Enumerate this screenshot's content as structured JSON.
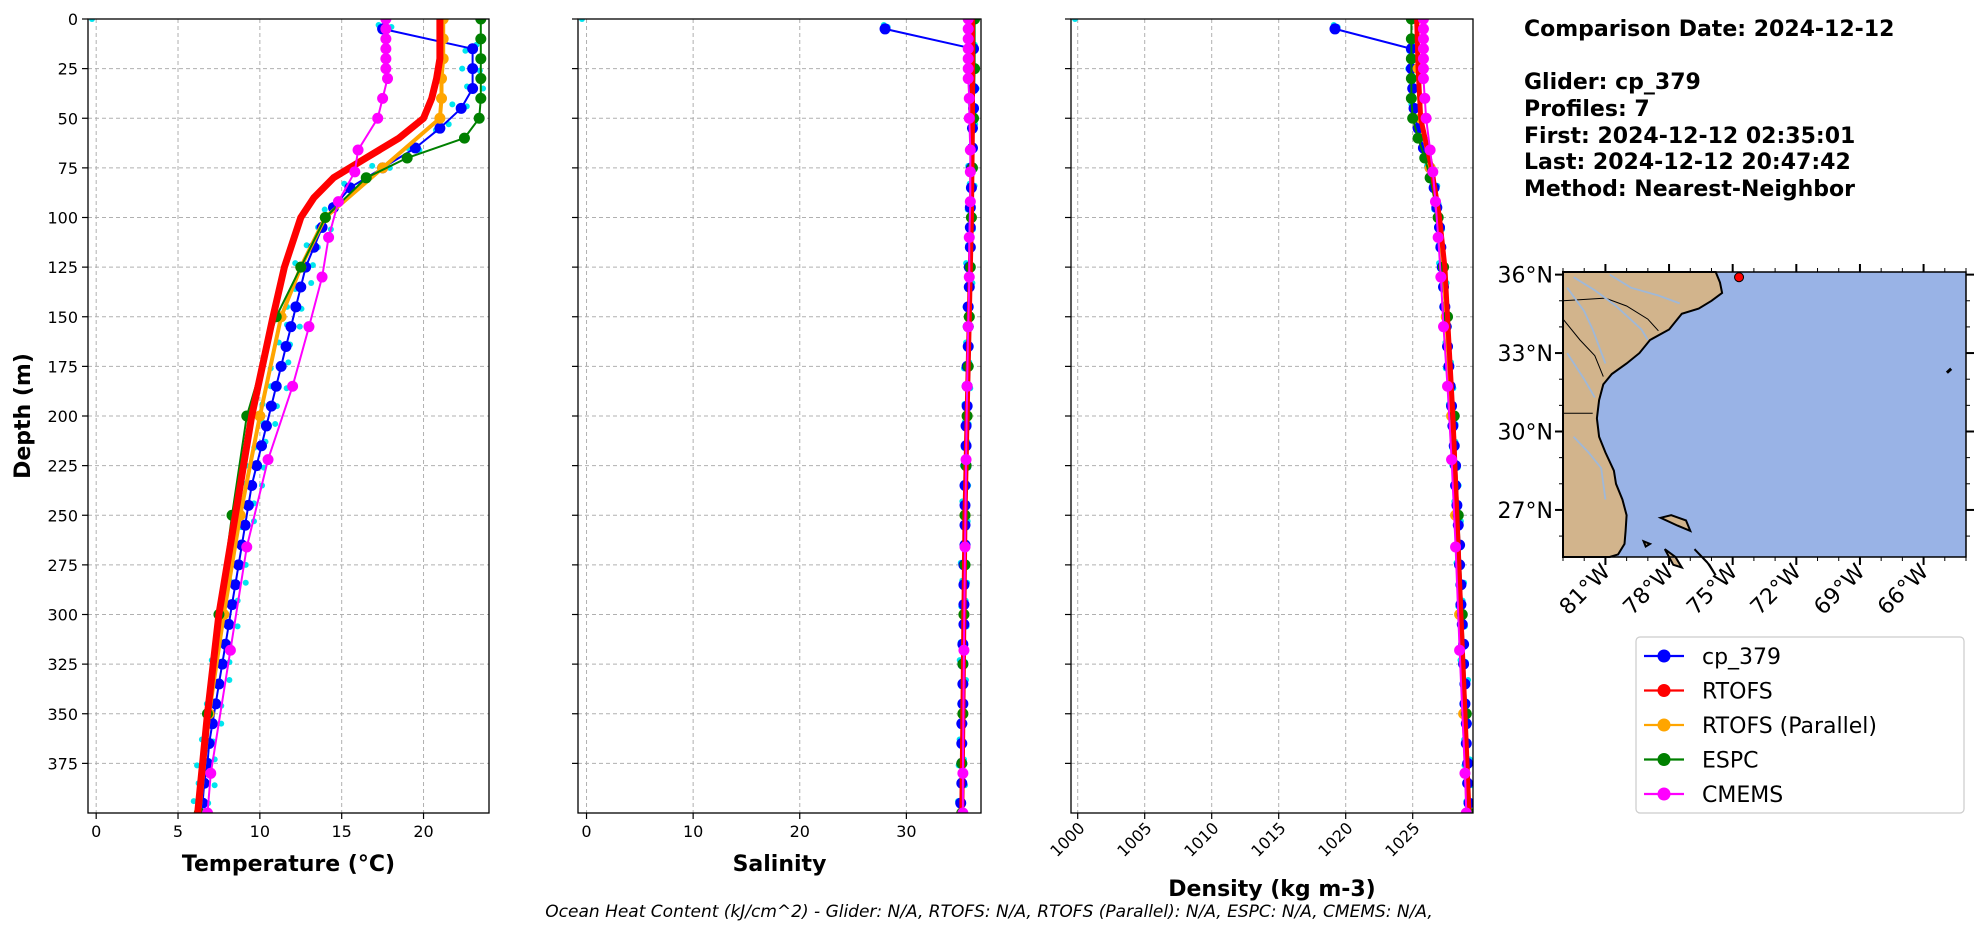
{
  "colors": {
    "cp_379": "#0000ff",
    "RTOFS": "#ff0000",
    "RTOFS (Parallel)": "#ffa500",
    "ESPC": "#008000",
    "CMEMS": "#ff00ff",
    "glider_raw": "#00e5ee",
    "grid": "#b0b0b0",
    "land": "#d2b48c",
    "ocean": "#99b3e6",
    "river": "#9fb8d8"
  },
  "info": {
    "lines": [
      "Comparison Date: 2024-12-12",
      "",
      "Glider: cp_379",
      "Profiles: 7",
      "First: 2024-12-12 02:35:01",
      "Last: 2024-12-12 20:47:42",
      "Method: Nearest-Neighbor"
    ]
  },
  "footer": {
    "text": "Ocean Heat Content (kJ/cm^2) - Glider: N/A,  RTOFS: N/A,  RTOFS (Parallel): N/A,  ESPC: N/A,  CMEMS: N/A,"
  },
  "map": {
    "lat_labels": [
      "36°N",
      "33°N",
      "30°N",
      "27°N"
    ],
    "lat_values": [
      36,
      33,
      30,
      27
    ],
    "lon_labels": [
      "81°W",
      "78°W",
      "75°W",
      "72°W",
      "69°W",
      "66°W"
    ],
    "lon_values": [
      -81,
      -78,
      -75,
      -72,
      -69,
      -66
    ],
    "extent": {
      "lon": [
        -83,
        -64
      ],
      "lat": [
        25.2,
        36.1
      ]
    },
    "glider_position": {
      "lon": -74.7,
      "lat": 35.9
    }
  },
  "legend": {
    "entries": [
      "cp_379",
      "RTOFS",
      "RTOFS (Parallel)",
      "ESPC",
      "CMEMS"
    ]
  },
  "chart_data": [
    {
      "type": "line",
      "xlabel": "Temperature (°C)",
      "ylabel": "Depth (m)",
      "xlim": [
        -0.5,
        24
      ],
      "ylim": [
        400,
        0
      ],
      "xticks": [
        0,
        5,
        10,
        15,
        20
      ],
      "yticks": [
        0,
        25,
        50,
        75,
        100,
        125,
        150,
        175,
        200,
        225,
        250,
        275,
        300,
        325,
        350,
        375
      ],
      "grid": true,
      "series": [
        {
          "name": "cp_379",
          "depth": [
            5,
            15,
            25,
            35,
            45,
            55,
            65,
            75,
            85,
            95,
            105,
            115,
            125,
            135,
            145,
            155,
            165,
            175,
            185,
            195,
            205,
            215,
            225,
            235,
            245,
            255,
            265,
            275,
            285,
            295,
            305,
            315,
            325,
            335,
            345,
            355,
            365,
            375,
            385,
            395
          ],
          "values": [
            17.5,
            23,
            23,
            23,
            22.3,
            21,
            19.5,
            17.5,
            15.5,
            14.5,
            13.8,
            13.3,
            12.8,
            12.5,
            12.2,
            11.9,
            11.6,
            11.3,
            11,
            10.7,
            10.4,
            10.1,
            9.8,
            9.5,
            9.3,
            9.1,
            8.9,
            8.7,
            8.5,
            8.3,
            8.1,
            7.9,
            7.7,
            7.5,
            7.3,
            7.1,
            6.9,
            6.8,
            6.6,
            6.5
          ]
        },
        {
          "name": "RTOFS",
          "depth": [
            0,
            10,
            20,
            30,
            40,
            50,
            60,
            70,
            80,
            90,
            100,
            125,
            150,
            200,
            250,
            300,
            350,
            400
          ],
          "values": [
            21,
            21,
            21,
            20.8,
            20.5,
            20,
            18.5,
            16.5,
            14.5,
            13.3,
            12.5,
            11.5,
            10.8,
            9.5,
            8.5,
            7.5,
            6.8,
            6.2
          ]
        },
        {
          "name": "RTOFS (Parallel)",
          "depth": [
            0,
            10,
            20,
            30,
            40,
            50,
            75,
            100,
            125,
            150,
            200,
            250,
            300,
            350,
            400
          ],
          "values": [
            21.2,
            21.2,
            21.2,
            21.1,
            21.1,
            21,
            17.5,
            14,
            12.5,
            11.3,
            10,
            8.8,
            7.8,
            6.9,
            6.3
          ]
        },
        {
          "name": "ESPC",
          "depth": [
            0,
            10,
            20,
            30,
            40,
            50,
            60,
            70,
            80,
            100,
            125,
            150,
            200,
            250,
            300,
            350,
            400
          ],
          "values": [
            23.5,
            23.5,
            23.5,
            23.5,
            23.5,
            23.4,
            22.5,
            19,
            16.5,
            14,
            12.5,
            11,
            9.2,
            8.3,
            7.5,
            6.8,
            6.3
          ]
        },
        {
          "name": "CMEMS",
          "depth": [
            0,
            5,
            10,
            15,
            20,
            25,
            30,
            40,
            50,
            66,
            77,
            92,
            110,
            130,
            155,
            185,
            222,
            266,
            318,
            380,
            400
          ],
          "values": [
            17.7,
            17.7,
            17.7,
            17.7,
            17.7,
            17.7,
            17.8,
            17.5,
            17.2,
            16,
            15.8,
            14.8,
            14.2,
            13.8,
            13,
            12,
            10.5,
            9.2,
            8.2,
            7,
            6.8
          ]
        }
      ]
    },
    {
      "type": "line",
      "xlabel": "Salinity",
      "ylabel": "",
      "xlim": [
        -0.8,
        37
      ],
      "ylim": [
        400,
        0
      ],
      "xticks": [
        0,
        10,
        20,
        30
      ],
      "grid": true,
      "series": [
        {
          "name": "cp_379",
          "depth": [
            5,
            15,
            25,
            35,
            45,
            55,
            65,
            75,
            85,
            95,
            105,
            115,
            125,
            135,
            145,
            155,
            165,
            175,
            185,
            195,
            205,
            215,
            225,
            235,
            245,
            255,
            265,
            275,
            285,
            295,
            305,
            315,
            325,
            335,
            345,
            355,
            365,
            375,
            385,
            395
          ],
          "values": [
            28,
            36.3,
            36.3,
            36.3,
            36.3,
            36.2,
            36.2,
            36.1,
            36.1,
            36,
            36,
            36,
            35.9,
            35.9,
            35.8,
            35.8,
            35.8,
            35.7,
            35.7,
            35.7,
            35.6,
            35.6,
            35.6,
            35.5,
            35.5,
            35.5,
            35.5,
            35.4,
            35.4,
            35.4,
            35.4,
            35.3,
            35.3,
            35.3,
            35.3,
            35.2,
            35.2,
            35.2,
            35.2,
            35.1
          ]
        },
        {
          "name": "RTOFS",
          "depth": [
            0,
            50,
            100,
            150,
            200,
            250,
            300,
            350,
            400
          ],
          "values": [
            36.2,
            36.2,
            36.1,
            35.9,
            35.7,
            35.5,
            35.4,
            35.3,
            35.2
          ]
        },
        {
          "name": "RTOFS (Parallel)",
          "depth": [
            0,
            50,
            100,
            150,
            200,
            250,
            300,
            350,
            400
          ],
          "values": [
            36.2,
            36.2,
            36.1,
            35.9,
            35.7,
            35.5,
            35.4,
            35.3,
            35.2
          ]
        },
        {
          "name": "ESPC",
          "depth": [
            0,
            25,
            50,
            75,
            100,
            125,
            150,
            175,
            200,
            225,
            250,
            275,
            300,
            325,
            350,
            375,
            400
          ],
          "values": [
            36.4,
            36.4,
            36.3,
            36.2,
            36.1,
            36,
            35.9,
            35.8,
            35.7,
            35.6,
            35.5,
            35.5,
            35.4,
            35.3,
            35.3,
            35.2,
            35.2
          ]
        },
        {
          "name": "CMEMS",
          "depth": [
            0,
            5,
            10,
            15,
            20,
            25,
            30,
            40,
            50,
            66,
            77,
            92,
            110,
            130,
            155,
            185,
            222,
            266,
            318,
            380,
            400
          ],
          "values": [
            35.8,
            35.8,
            35.8,
            35.8,
            35.8,
            35.8,
            35.8,
            35.9,
            35.9,
            36,
            36,
            36,
            35.9,
            35.9,
            35.8,
            35.7,
            35.6,
            35.5,
            35.4,
            35.3,
            35.3
          ]
        }
      ]
    },
    {
      "type": "line",
      "xlabel": "Density (kg m-3)",
      "ylabel": "",
      "xlim": [
        999.5,
        1029.5
      ],
      "ylim": [
        400,
        0
      ],
      "xticks": [
        1000,
        1005,
        1010,
        1015,
        1020,
        1025
      ],
      "grid": true,
      "series": [
        {
          "name": "cp_379",
          "depth": [
            5,
            15,
            25,
            35,
            45,
            55,
            65,
            75,
            85,
            95,
            105,
            115,
            125,
            135,
            145,
            155,
            165,
            175,
            185,
            195,
            205,
            215,
            225,
            235,
            245,
            255,
            265,
            275,
            285,
            295,
            305,
            315,
            325,
            335,
            345,
            355,
            365,
            375,
            385,
            395
          ],
          "values": [
            1019.2,
            1024.9,
            1024.9,
            1025,
            1025.1,
            1025.4,
            1025.8,
            1026.3,
            1026.6,
            1026.8,
            1027,
            1027.1,
            1027.2,
            1027.3,
            1027.4,
            1027.5,
            1027.6,
            1027.7,
            1027.8,
            1027.9,
            1028,
            1028.1,
            1028.2,
            1028.2,
            1028.3,
            1028.4,
            1028.5,
            1028.5,
            1028.6,
            1028.6,
            1028.7,
            1028.8,
            1028.8,
            1028.9,
            1028.9,
            1029,
            1029,
            1029.1,
            1029.1,
            1029.2
          ]
        },
        {
          "name": "RTOFS",
          "depth": [
            0,
            25,
            50,
            75,
            100,
            125,
            150,
            200,
            250,
            300,
            350,
            400
          ],
          "values": [
            1025.3,
            1025.4,
            1025.6,
            1026.4,
            1027,
            1027.4,
            1027.6,
            1028,
            1028.3,
            1028.6,
            1028.9,
            1029.2
          ]
        },
        {
          "name": "RTOFS (Parallel)",
          "depth": [
            0,
            25,
            50,
            75,
            100,
            125,
            150,
            200,
            250,
            300,
            350,
            400
          ],
          "values": [
            1025.3,
            1025.4,
            1025.6,
            1026.3,
            1026.9,
            1027.3,
            1027.5,
            1027.9,
            1028.2,
            1028.5,
            1028.8,
            1029.1
          ]
        },
        {
          "name": "ESPC",
          "depth": [
            0,
            10,
            20,
            30,
            40,
            50,
            60,
            70,
            80,
            100,
            125,
            150,
            200,
            250,
            300,
            350,
            400
          ],
          "values": [
            1024.9,
            1024.9,
            1024.9,
            1024.9,
            1024.9,
            1025,
            1025.4,
            1025.9,
            1026.3,
            1026.9,
            1027.3,
            1027.6,
            1028.1,
            1028.4,
            1028.7,
            1029,
            1029.2
          ]
        },
        {
          "name": "CMEMS",
          "depth": [
            0,
            5,
            10,
            15,
            20,
            25,
            30,
            40,
            50,
            66,
            77,
            92,
            110,
            130,
            155,
            185,
            222,
            266,
            318,
            380,
            400
          ],
          "values": [
            1025.8,
            1025.8,
            1025.8,
            1025.8,
            1025.8,
            1025.8,
            1025.8,
            1025.9,
            1026,
            1026.3,
            1026.5,
            1026.7,
            1026.9,
            1027.1,
            1027.3,
            1027.6,
            1027.9,
            1028.2,
            1028.5,
            1028.9,
            1029
          ]
        }
      ]
    }
  ]
}
